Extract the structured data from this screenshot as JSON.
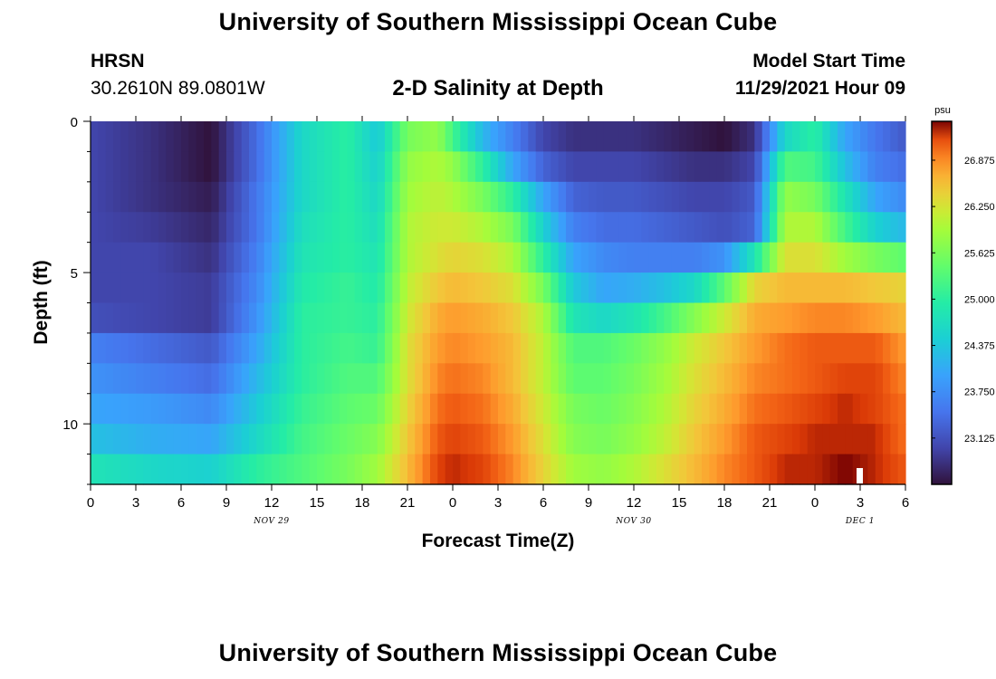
{
  "header": {
    "title": "University of Southern Mississippi Ocean Cube",
    "station_id": "HRSN",
    "station_coords": "30.2610N  89.0801W",
    "plot_title": "2-D Salinity at Depth",
    "model_start_label": "Model Start Time",
    "model_start_value": "11/29/2021 Hour 09"
  },
  "footer": {
    "title": "University of Southern Mississippi Ocean Cube"
  },
  "chart_data": {
    "type": "heatmap",
    "title": "2-D Salinity at Depth",
    "xlabel": "Forecast Time(Z)",
    "ylabel": "Depth (ft)",
    "x_range_hours": [
      0,
      54
    ],
    "x_step_hours": 0.5,
    "x_tick_labels": [
      "0",
      "3",
      "6",
      "9",
      "12",
      "15",
      "18",
      "21",
      "0",
      "3",
      "6",
      "9",
      "12",
      "15",
      "18",
      "21",
      "0",
      "3",
      "6"
    ],
    "date_labels": [
      {
        "text": "NOV 29",
        "hour": 12
      },
      {
        "text": "NOV 30",
        "hour": 36
      },
      {
        "text": "DEC 1",
        "hour": 51
      }
    ],
    "y_range_ft": [
      0,
      12
    ],
    "y_tick_labels": [
      "0",
      "5",
      "10"
    ],
    "depth_levels_ft": [
      0.5,
      1.5,
      2.5,
      3.5,
      4.5,
      5.5,
      6.5,
      7.5,
      8.5,
      9.5,
      10.5,
      11.5
    ],
    "colorbar": {
      "unit": "psu",
      "range": [
        22.5,
        27.4
      ],
      "ticks": [
        "23.125",
        "23.750",
        "24.375",
        "25.000",
        "25.625",
        "26.250",
        "26.875"
      ]
    },
    "time_key_hours": [
      0,
      4,
      8,
      11,
      14,
      17,
      19,
      21,
      23,
      24,
      26,
      28,
      30,
      32,
      34,
      36,
      38,
      40,
      42,
      44,
      46,
      48,
      50,
      52,
      54
    ],
    "salinity_psu": [
      [
        23.0,
        22.8,
        22.5,
        23.4,
        24.6,
        25.0,
        24.4,
        25.6,
        25.8,
        25.2,
        24.2,
        23.6,
        23.0,
        22.8,
        22.8,
        22.8,
        22.7,
        22.6,
        22.5,
        22.8,
        24.6,
        25.0,
        24.0,
        23.5,
        23.2
      ],
      [
        23.0,
        22.8,
        22.5,
        23.4,
        24.6,
        25.0,
        24.5,
        25.8,
        26.0,
        25.8,
        25.0,
        24.0,
        23.3,
        23.0,
        23.0,
        23.0,
        22.9,
        22.8,
        22.8,
        23.0,
        25.3,
        25.2,
        24.3,
        23.6,
        23.4
      ],
      [
        23.0,
        22.8,
        22.6,
        23.5,
        24.6,
        25.0,
        24.6,
        25.9,
        26.1,
        26.0,
        25.6,
        25.0,
        24.0,
        23.3,
        23.2,
        23.2,
        23.1,
        23.0,
        23.0,
        23.2,
        25.8,
        25.6,
        24.8,
        24.0,
        23.7
      ],
      [
        23.0,
        22.9,
        22.7,
        23.5,
        24.7,
        25.0,
        24.7,
        26.0,
        26.2,
        26.2,
        26.0,
        25.6,
        24.5,
        23.6,
        23.4,
        23.4,
        23.3,
        23.2,
        23.1,
        23.3,
        26.0,
        26.0,
        25.2,
        24.5,
        24.2
      ],
      [
        23.0,
        23.0,
        22.8,
        23.6,
        24.8,
        25.0,
        24.8,
        26.0,
        26.3,
        26.4,
        26.3,
        26.0,
        25.0,
        24.0,
        23.7,
        23.6,
        23.6,
        23.6,
        23.8,
        24.8,
        26.3,
        26.3,
        25.9,
        25.6,
        25.4
      ],
      [
        23.0,
        23.0,
        22.9,
        23.7,
        24.9,
        25.1,
        24.9,
        26.1,
        26.5,
        26.6,
        26.5,
        26.3,
        25.6,
        24.4,
        24.0,
        24.1,
        24.3,
        24.6,
        25.4,
        26.4,
        26.6,
        26.6,
        26.6,
        26.5,
        26.4
      ],
      [
        23.1,
        23.0,
        22.9,
        23.8,
        25.0,
        25.1,
        25.0,
        26.2,
        26.7,
        26.8,
        26.7,
        26.5,
        26.0,
        24.8,
        24.6,
        24.8,
        25.2,
        25.7,
        26.2,
        26.7,
        26.8,
        26.9,
        26.9,
        26.8,
        26.6
      ],
      [
        23.6,
        23.4,
        23.2,
        24.0,
        25.0,
        25.2,
        25.1,
        26.3,
        26.8,
        26.9,
        26.8,
        26.6,
        26.1,
        25.3,
        25.3,
        25.5,
        25.8,
        26.2,
        26.5,
        26.8,
        27.0,
        27.1,
        27.1,
        27.1,
        26.8
      ],
      [
        23.8,
        23.6,
        23.4,
        24.2,
        25.0,
        25.3,
        25.3,
        26.3,
        26.9,
        27.0,
        26.9,
        26.6,
        26.1,
        25.4,
        25.4,
        25.6,
        25.9,
        26.3,
        26.6,
        26.9,
        27.0,
        27.1,
        27.2,
        27.2,
        26.9
      ],
      [
        24.0,
        23.9,
        23.7,
        24.4,
        25.1,
        25.4,
        25.5,
        26.4,
        27.0,
        27.1,
        27.0,
        26.7,
        26.2,
        25.6,
        25.5,
        25.7,
        26.0,
        26.4,
        26.7,
        27.0,
        27.1,
        27.2,
        27.3,
        27.2,
        27.0
      ],
      [
        24.3,
        24.1,
        24.0,
        24.6,
        25.2,
        25.5,
        25.7,
        26.5,
        27.1,
        27.2,
        27.1,
        26.8,
        26.3,
        25.7,
        25.6,
        25.8,
        26.1,
        26.5,
        26.8,
        27.1,
        27.2,
        27.3,
        27.3,
        27.3,
        27.0
      ],
      [
        24.8,
        24.6,
        24.5,
        25.0,
        25.3,
        25.6,
        25.9,
        26.6,
        27.2,
        27.3,
        27.2,
        26.9,
        26.4,
        25.9,
        25.8,
        26.0,
        26.3,
        26.6,
        26.9,
        27.1,
        27.3,
        27.3,
        27.4,
        27.3,
        27.1
      ]
    ]
  }
}
